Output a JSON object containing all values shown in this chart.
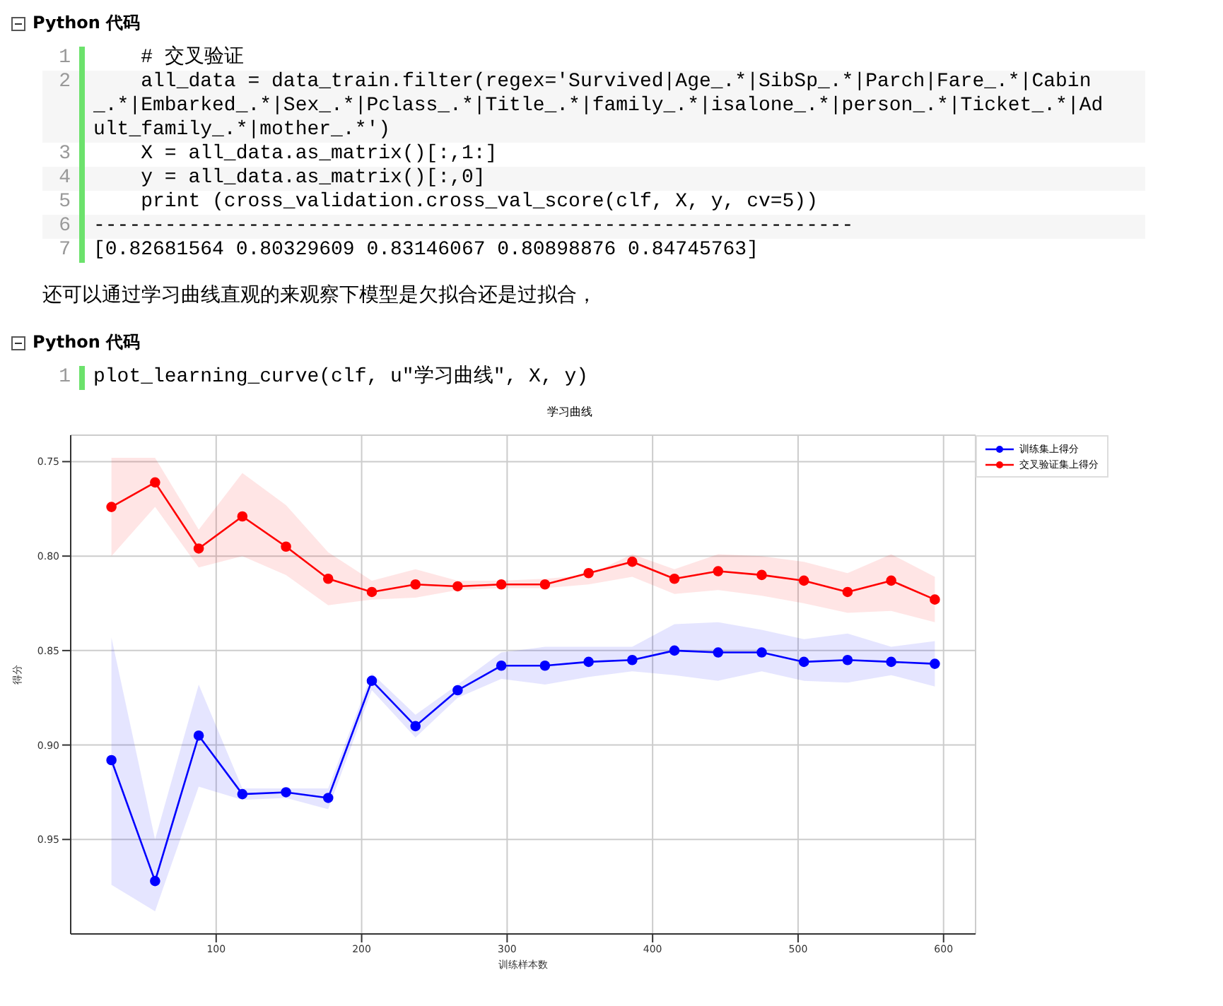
{
  "chart_data": {
    "type": "line",
    "title": "学习曲线",
    "xlabel": "训练样本数",
    "ylabel": "得分",
    "x": [
      28,
      58,
      88,
      118,
      148,
      177,
      207,
      237,
      266,
      296,
      326,
      356,
      386,
      415,
      445,
      475,
      504,
      534,
      564,
      594
    ],
    "series": [
      {
        "name": "训练集上得分",
        "color": "#0000ff",
        "values": [
          0.908,
          0.972,
          0.895,
          0.926,
          0.925,
          0.928,
          0.866,
          0.89,
          0.871,
          0.858,
          0.858,
          0.856,
          0.855,
          0.85,
          0.851,
          0.851,
          0.856,
          0.855,
          0.856,
          0.857
        ],
        "lower": [
          0.843,
          0.95,
          0.868,
          0.923,
          0.923,
          0.923,
          0.862,
          0.884,
          0.868,
          0.851,
          0.848,
          0.848,
          0.848,
          0.836,
          0.835,
          0.839,
          0.844,
          0.841,
          0.848,
          0.845
        ],
        "upper": [
          0.974,
          0.988,
          0.922,
          0.929,
          0.928,
          0.934,
          0.871,
          0.896,
          0.875,
          0.865,
          0.868,
          0.864,
          0.861,
          0.863,
          0.866,
          0.861,
          0.866,
          0.867,
          0.863,
          0.869
        ]
      },
      {
        "name": "交叉验证集上得分",
        "color": "#ff0000",
        "values": [
          0.774,
          0.761,
          0.796,
          0.779,
          0.795,
          0.812,
          0.819,
          0.815,
          0.816,
          0.815,
          0.815,
          0.809,
          0.803,
          0.812,
          0.808,
          0.81,
          0.813,
          0.819,
          0.813,
          0.823
        ],
        "lower": [
          0.748,
          0.748,
          0.786,
          0.756,
          0.773,
          0.798,
          0.813,
          0.807,
          0.813,
          0.813,
          0.812,
          0.81,
          0.799,
          0.807,
          0.799,
          0.8,
          0.803,
          0.809,
          0.799,
          0.811
        ],
        "upper": [
          0.8,
          0.774,
          0.806,
          0.8,
          0.81,
          0.826,
          0.823,
          0.822,
          0.818,
          0.817,
          0.817,
          0.815,
          0.811,
          0.82,
          0.818,
          0.821,
          0.825,
          0.83,
          0.829,
          0.835
        ]
      }
    ],
    "xlim": [
      0,
      622
    ],
    "xticks": [
      100,
      200,
      300,
      400,
      500,
      600
    ],
    "ylim": [
      1.0,
      0.736
    ],
    "yticks": [
      0.75,
      {
        "value": 0.8,
        "label": "0.80"
      },
      0.85,
      {
        "value": 0.9,
        "label": "0.90"
      },
      0.95
    ],
    "grid": true,
    "legend": "top right",
    "marker": "circle",
    "line_style": "solid",
    "annotations": [
      "Python 代码",
      "1",
      "    # 交叉验证",
      "2",
      "    all_data = data_train.filter(regex='Survived|Age_.*|SibSp_.*|Parch|Fare_.*|Cabin_.*|Embarked_.*|Sex_.*|Pclass_.*|Title_.*|family_.*|isalone_.*|person_.*|Ticket_.*|Adult_family_.*|mother_.*')",
      "3",
      "    X = all_data.as_matrix()[:,1:]",
      "4",
      "    y = all_data.as_matrix()[:,0]",
      "5",
      "    print (cross_validation.cross_val_score(clf, X, y, cv=5))",
      "6",
      "----------------------------------------------------------------",
      "7",
      "[0.82681564 0.80329609 0.83146067 0.80898876 0.84745763]",
      "还可以通过学习曲线直观的来观察下模型是欠拟合还是过拟合，",
      "Python 代码",
      "1",
      "plot_learning_curve(clf, u\"学习曲线\", X, y)"
    ]
  }
}
